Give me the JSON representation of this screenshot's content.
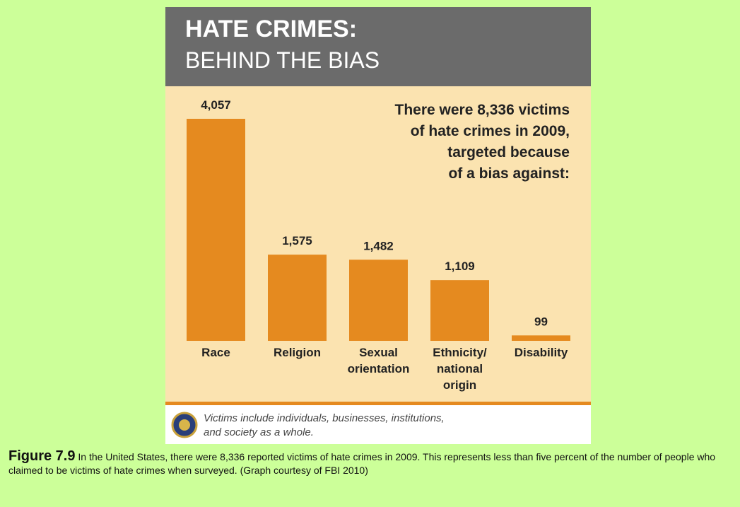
{
  "chart_data": {
    "type": "bar",
    "title": [
      "HATE CRIMES:",
      "BEHIND THE BIAS"
    ],
    "annotation": [
      "There were 8,336 victims",
      "of hate crimes in 2009,",
      "targeted because",
      "of a bias against:"
    ],
    "categories": [
      [
        "Race"
      ],
      [
        "Religion"
      ],
      [
        "Sexual",
        "orientation"
      ],
      [
        "Ethnicity/",
        "national",
        "origin"
      ],
      [
        "Disability"
      ]
    ],
    "values": [
      4057,
      1575,
      1482,
      1109,
      99
    ],
    "value_labels": [
      "4,057",
      "1,575",
      "1,482",
      "1,109",
      "99"
    ],
    "color": "#e58a1f",
    "footnote": [
      "Victims include individuals, businesses, institutions,",
      "and society as a whole."
    ]
  },
  "caption": {
    "label": "Figure 7.9",
    "text": "In the United States, there were 8,336 reported victims of hate crimes in 2009. This represents less than five percent of the number of people who claimed to be victims of hate crimes when surveyed. (Graph courtesy of FBI 2010)"
  }
}
